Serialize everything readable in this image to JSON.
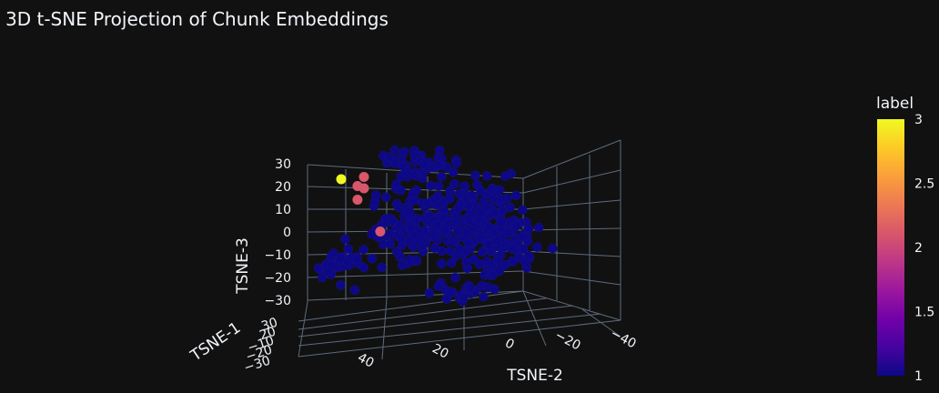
{
  "chart_data": {
    "type": "scatter3d",
    "title": "3D t-SNE Projection of Chunk Embeddings",
    "axes": {
      "x": {
        "label": "TSNE-1",
        "ticks": [
          "30",
          "20",
          "−10",
          "−20",
          "−30"
        ]
      },
      "y": {
        "label": "TSNE-2",
        "ticks": [
          "40",
          "20",
          "0",
          "−20",
          "−40"
        ],
        "range": [
          -40,
          40
        ]
      },
      "z": {
        "label": "TSNE-3",
        "ticks": [
          "30",
          "20",
          "10",
          "0",
          "−10",
          "−20",
          "−30"
        ],
        "range": [
          -35,
          35
        ]
      }
    },
    "colorbar": {
      "title": "label",
      "ticks": [
        "3",
        "2.5",
        "2",
        "1.5",
        "1"
      ],
      "min": 1,
      "max": 3,
      "colorscale": [
        "#0d0887",
        "#46039f",
        "#7201a8",
        "#9c179e",
        "#bd3786",
        "#d8576b",
        "#ed7953",
        "#fb9f3a",
        "#fdca26",
        "#f0f921"
      ]
    },
    "highlighted_points": [
      {
        "label": 3,
        "tsne2": 38,
        "tsne3": 22
      },
      {
        "label": 2,
        "tsne2": 33,
        "tsne3": 19
      },
      {
        "label": 2,
        "tsne2": 31,
        "tsne3": 23
      },
      {
        "label": 2,
        "tsne2": 31,
        "tsne3": 18
      },
      {
        "label": 2,
        "tsne2": 33,
        "tsne3": 13
      },
      {
        "label": 2,
        "tsne2": 26,
        "tsne3": -1
      }
    ],
    "background_points": {
      "label": 1,
      "count": 420,
      "tsne2": [
        -25,
        45
      ],
      "tsne3": [
        -35,
        37
      ]
    },
    "grid": true,
    "legend": "none"
  }
}
